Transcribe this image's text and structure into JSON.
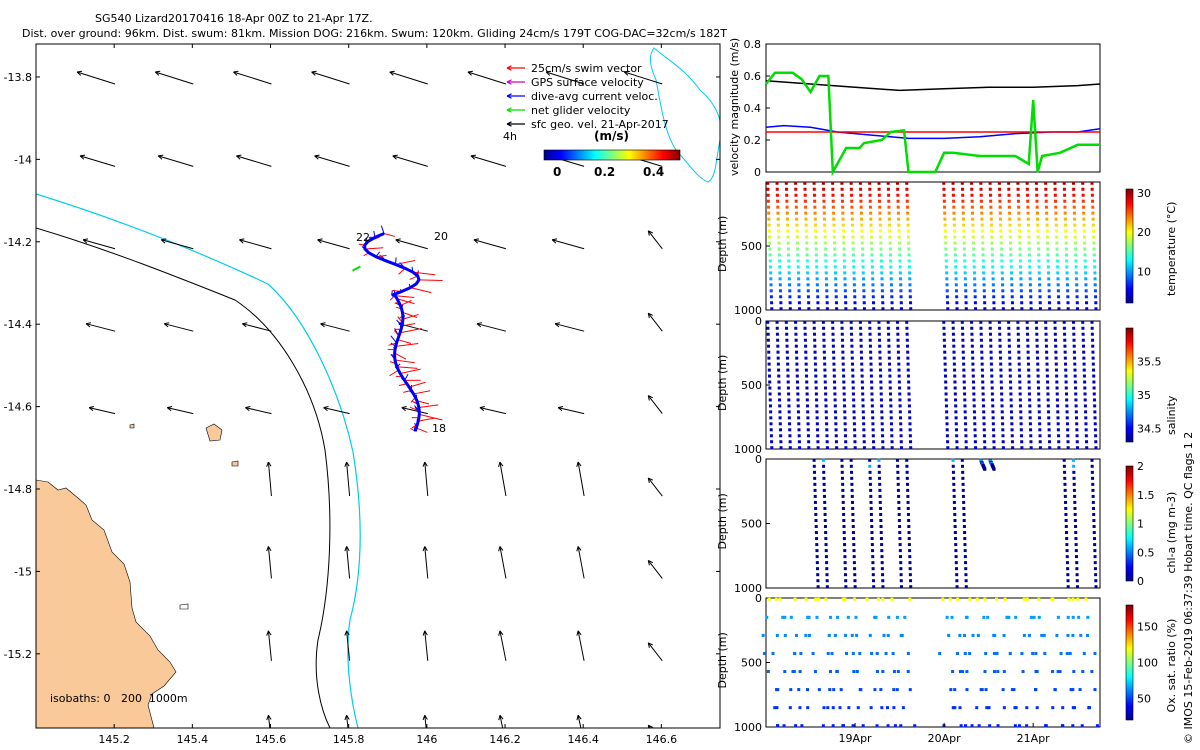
{
  "title": {
    "line1": "SG540 Lizard20170416 18-Apr 00Z to 21-Apr 17Z.",
    "line2": "Dist. over ground: 96km. Dist. swum: 81km. Mission DOG: 216km. Swum: 120km. Gliding 24cm/s 179T COG-DAC=32cm/s 182T"
  },
  "side_note": "© IMOS 15-Feb-2019 06:37:39 Hobart time. QC flags 1  2",
  "colors": {
    "land": "#f9c99a",
    "shelf_cyan": "#00ccee",
    "swim": "#ff0000",
    "gps": "#cc00cc",
    "dac": "#0000ff",
    "net": "#00dd00",
    "geo": "#000000"
  },
  "chart_data": [
    {
      "type": "map",
      "name": "glider-track-map",
      "xlim": [
        145.0,
        146.75
      ],
      "ylim": [
        -15.38,
        -13.72
      ],
      "x_ticks": [
        "145.2",
        "145.4",
        "145.6",
        "145.8",
        "146",
        "146.2",
        "146.4",
        "146.6"
      ],
      "x_tick_values": [
        145.2,
        145.4,
        145.6,
        145.8,
        146.0,
        146.2,
        146.4,
        146.6
      ],
      "y_ticks": [
        "-13.8",
        "-14",
        "-14.2",
        "-14.4",
        "-14.6",
        "-14.8",
        "-15",
        "-15.2"
      ],
      "y_tick_values": [
        -13.8,
        -14.0,
        -14.2,
        -14.4,
        -14.6,
        -14.8,
        -15.0,
        -15.2
      ],
      "legend": [
        {
          "label": "25cm/s swim vector",
          "color": "#ff0000"
        },
        {
          "label": "GPS surface velocity",
          "color": "#cc00cc"
        },
        {
          "label": "dive-avg current veloc.",
          "color": "#0000ff"
        },
        {
          "label": "net glider velocity",
          "color": "#00dd00"
        },
        {
          "label": "sfc geo. vel. 21-Apr-2017",
          "color": "#000000"
        }
      ],
      "legend_extra": "4h",
      "colorbar": {
        "title": "(m/s)",
        "ticks": [
          "0",
          "0.2",
          "0.4"
        ],
        "range": [
          0,
          0.5
        ]
      },
      "day_labels": [
        "18",
        "20",
        "22"
      ],
      "isobath_label": "isobaths: 0   200  1000m"
    },
    {
      "type": "line",
      "name": "velocity-magnitude",
      "ylabel": "velocity magnitude (m/s)",
      "ylim": [
        0,
        0.8
      ],
      "y_ticks": [
        "0",
        "0.2",
        "0.4",
        "0.6",
        "0.8"
      ],
      "x_range_days": [
        18.0,
        21.75
      ],
      "series": [
        {
          "name": "sfc geo",
          "color": "#000000",
          "x": [
            18.0,
            18.5,
            19.0,
            19.5,
            20.0,
            20.5,
            21.0,
            21.5,
            21.75
          ],
          "y": [
            0.57,
            0.55,
            0.53,
            0.51,
            0.52,
            0.53,
            0.53,
            0.54,
            0.55
          ]
        },
        {
          "name": "dive-avg",
          "color": "#0000ff",
          "x": [
            18.0,
            18.2,
            18.5,
            18.8,
            19.2,
            19.6,
            20.0,
            20.4,
            20.8,
            21.2,
            21.5,
            21.75
          ],
          "y": [
            0.28,
            0.29,
            0.28,
            0.25,
            0.23,
            0.21,
            0.21,
            0.22,
            0.24,
            0.25,
            0.25,
            0.27
          ]
        },
        {
          "name": "swim",
          "color": "#ff0000",
          "x": [
            18.0,
            19.6,
            19.9,
            21.75
          ],
          "y": [
            0.25,
            0.25,
            0.25,
            0.25
          ]
        },
        {
          "name": "net glider",
          "color": "#00dd00",
          "x": [
            18.0,
            18.1,
            18.3,
            18.4,
            18.5,
            18.6,
            18.7,
            18.75,
            18.9,
            19.05,
            19.1,
            19.3,
            19.4,
            19.55,
            19.6,
            19.9,
            20.0,
            20.1,
            20.4,
            20.6,
            20.8,
            20.95,
            21.0,
            21.05,
            21.1,
            21.3,
            21.5,
            21.75
          ],
          "y": [
            0.55,
            0.62,
            0.62,
            0.58,
            0.5,
            0.6,
            0.6,
            0.0,
            0.15,
            0.15,
            0.18,
            0.2,
            0.25,
            0.26,
            0.0,
            0.0,
            0.12,
            0.12,
            0.1,
            0.1,
            0.1,
            0.05,
            0.45,
            0.0,
            0.1,
            0.12,
            0.17,
            0.17
          ]
        }
      ]
    },
    {
      "type": "scatter",
      "name": "temperature-section",
      "ylabel": "Depth (m)",
      "y_ticks": [
        "500",
        "1000"
      ],
      "colorbar_label": "temperature (°C)",
      "colorbar_ticks": [
        "10",
        "20",
        "30"
      ],
      "crange": [
        2,
        31
      ]
    },
    {
      "type": "scatter",
      "name": "salinity-section",
      "ylabel": "Depth (m)",
      "y_ticks": [
        "0",
        "500",
        "1000"
      ],
      "colorbar_label": "salinity",
      "colorbar_ticks": [
        "34.5",
        "35",
        "35.5"
      ],
      "crange": [
        34.3,
        36.0
      ]
    },
    {
      "type": "scatter",
      "name": "chla-section",
      "ylabel": "Depth (m)",
      "y_ticks": [
        "0",
        "500",
        "1000"
      ],
      "colorbar_label": "chl-a (mg m-3)",
      "colorbar_ticks": [
        "0",
        "0.5",
        "1",
        "1.5",
        "2"
      ],
      "crange": [
        0,
        2
      ]
    },
    {
      "type": "scatter",
      "name": "oxygen-section",
      "ylabel": "Depth (m)",
      "y_ticks": [
        "0",
        "500",
        "1000"
      ],
      "x_ticks": [
        "19Apr",
        "20Apr",
        "21Apr"
      ],
      "x_tick_values": [
        19.0,
        20.0,
        21.0
      ],
      "colorbar_label": "Ox. sat. ratio (%)",
      "colorbar_ticks": [
        "50",
        "100",
        "150"
      ],
      "crange": [
        20,
        180
      ]
    }
  ]
}
